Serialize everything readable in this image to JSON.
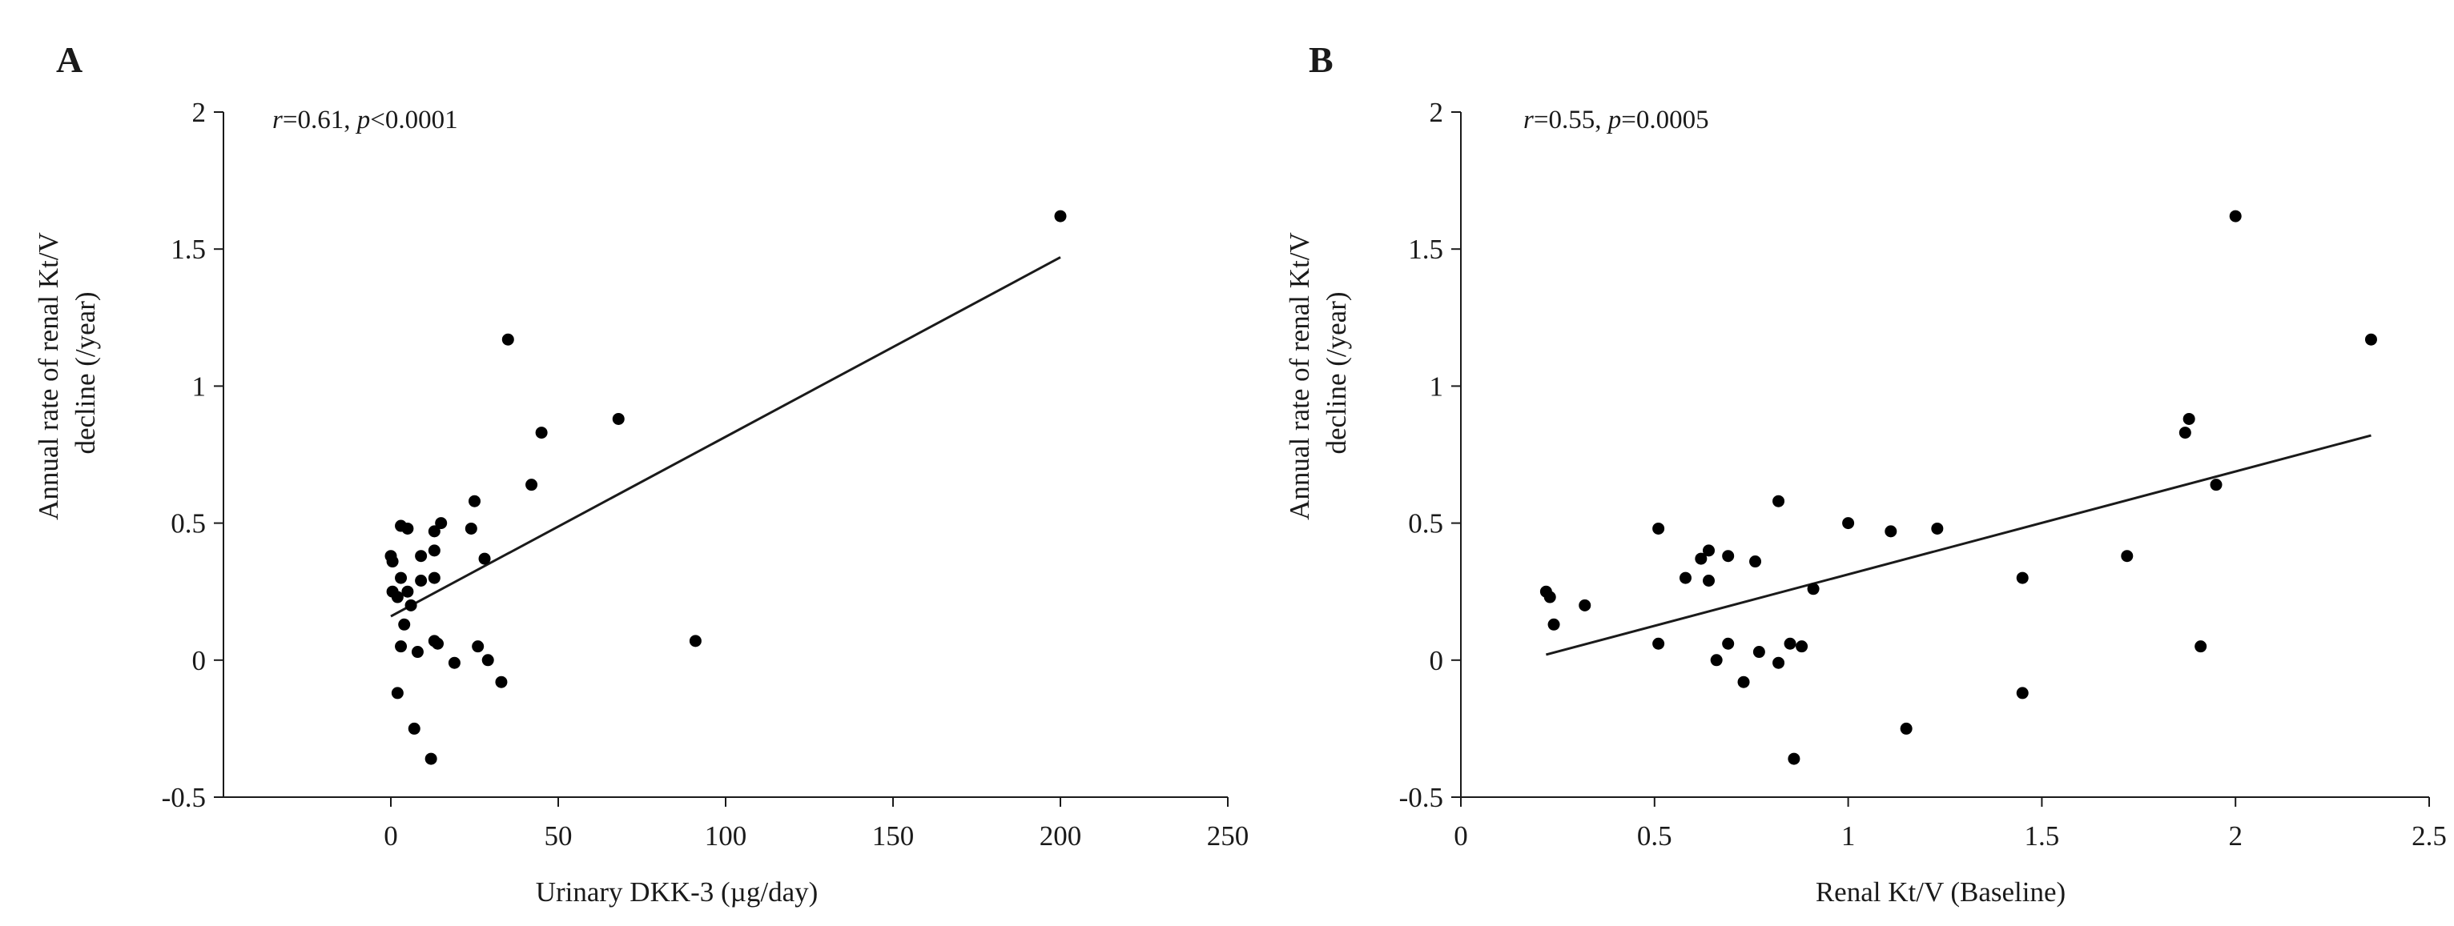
{
  "chart_data": [
    {
      "type": "scatter",
      "panel_label": "A",
      "stats": {
        "r_symbol": "r",
        "r_value": "=0.61, ",
        "p_symbol": "p",
        "p_value": "<0.0001"
      },
      "xlabel": "Urinary DKK-3 (µg/day)",
      "ylabel_lines": [
        "Annual rate of renal Kt/V",
        "decline (/year)"
      ],
      "xlim": [
        -50,
        250
      ],
      "ylim": [
        -0.5,
        2
      ],
      "xticks": [
        {
          "value": 0,
          "label": "0"
        },
        {
          "value": 50,
          "label": "50"
        },
        {
          "value": 100,
          "label": "100"
        },
        {
          "value": 150,
          "label": "150"
        },
        {
          "value": 200,
          "label": "200"
        },
        {
          "value": 250,
          "label": "250"
        }
      ],
      "yticks": [
        {
          "value": -0.5,
          "label": "-0.5"
        },
        {
          "value": 0,
          "label": "0"
        },
        {
          "value": 0.5,
          "label": "0.5"
        },
        {
          "value": 1,
          "label": "1"
        },
        {
          "value": 1.5,
          "label": "1.5"
        },
        {
          "value": 2,
          "label": "2"
        }
      ],
      "trend_line": {
        "x": [
          0,
          200
        ],
        "y": [
          0.16,
          1.47
        ]
      },
      "points": [
        {
          "x": 0,
          "y": 0.38
        },
        {
          "x": 0.5,
          "y": 0.36
        },
        {
          "x": 0.5,
          "y": 0.25
        },
        {
          "x": 2,
          "y": 0.23
        },
        {
          "x": 2,
          "y": -0.12
        },
        {
          "x": 3,
          "y": 0.49
        },
        {
          "x": 3,
          "y": 0.3
        },
        {
          "x": 3,
          "y": 0.05
        },
        {
          "x": 4,
          "y": 0.13
        },
        {
          "x": 5,
          "y": 0.48
        },
        {
          "x": 5,
          "y": 0.25
        },
        {
          "x": 6,
          "y": 0.2
        },
        {
          "x": 7,
          "y": -0.25
        },
        {
          "x": 8,
          "y": 0.03
        },
        {
          "x": 9,
          "y": 0.38
        },
        {
          "x": 9,
          "y": 0.29
        },
        {
          "x": 12,
          "y": -0.36
        },
        {
          "x": 13,
          "y": 0.47
        },
        {
          "x": 13,
          "y": 0.4
        },
        {
          "x": 13,
          "y": 0.3
        },
        {
          "x": 13,
          "y": 0.07
        },
        {
          "x": 14,
          "y": 0.06
        },
        {
          "x": 15,
          "y": 0.5
        },
        {
          "x": 19,
          "y": -0.01
        },
        {
          "x": 24,
          "y": 0.48
        },
        {
          "x": 25,
          "y": 0.58
        },
        {
          "x": 26,
          "y": 0.05
        },
        {
          "x": 28,
          "y": 0.37
        },
        {
          "x": 29,
          "y": 0
        },
        {
          "x": 33,
          "y": -0.08
        },
        {
          "x": 35,
          "y": 1.17
        },
        {
          "x": 42,
          "y": 0.64
        },
        {
          "x": 45,
          "y": 0.83
        },
        {
          "x": 68,
          "y": 0.88
        },
        {
          "x": 91,
          "y": 0.07
        },
        {
          "x": 200,
          "y": 1.62
        }
      ]
    },
    {
      "type": "scatter",
      "panel_label": "B",
      "stats": {
        "r_symbol": "r",
        "r_value": "=0.55, ",
        "p_symbol": "p",
        "p_value": "=0.0005"
      },
      "xlabel": "Renal Kt/V (Baseline)",
      "ylabel_lines": [
        "Annual rate of renal Kt/V",
        "decline (/year)"
      ],
      "xlim": [
        0,
        2.5
      ],
      "ylim": [
        -0.5,
        2
      ],
      "xticks": [
        {
          "value": 0,
          "label": "0"
        },
        {
          "value": 0.5,
          "label": "0.5"
        },
        {
          "value": 1,
          "label": "1"
        },
        {
          "value": 1.5,
          "label": "1.5"
        },
        {
          "value": 2,
          "label": "2"
        },
        {
          "value": 2.5,
          "label": "2.5"
        }
      ],
      "yticks": [
        {
          "value": -0.5,
          "label": "-0.5"
        },
        {
          "value": 0,
          "label": "0"
        },
        {
          "value": 0.5,
          "label": "0.5"
        },
        {
          "value": 1,
          "label": "1"
        },
        {
          "value": 1.5,
          "label": "1.5"
        },
        {
          "value": 2,
          "label": "2"
        }
      ],
      "trend_line": {
        "x": [
          0.22,
          2.35
        ],
        "y": [
          0.02,
          0.82
        ]
      },
      "points": [
        {
          "x": 0.22,
          "y": 0.25
        },
        {
          "x": 0.23,
          "y": 0.23
        },
        {
          "x": 0.24,
          "y": 0.13
        },
        {
          "x": 0.32,
          "y": 0.2
        },
        {
          "x": 0.51,
          "y": 0.48
        },
        {
          "x": 0.51,
          "y": 0.06
        },
        {
          "x": 0.58,
          "y": 0.3
        },
        {
          "x": 0.62,
          "y": 0.37
        },
        {
          "x": 0.64,
          "y": 0.4
        },
        {
          "x": 0.64,
          "y": 0.29
        },
        {
          "x": 0.66,
          "y": 0
        },
        {
          "x": 0.69,
          "y": 0.38
        },
        {
          "x": 0.69,
          "y": 0.06
        },
        {
          "x": 0.73,
          "y": -0.08
        },
        {
          "x": 0.76,
          "y": 0.36
        },
        {
          "x": 0.77,
          "y": 0.03
        },
        {
          "x": 0.82,
          "y": 0.58
        },
        {
          "x": 0.82,
          "y": -0.01
        },
        {
          "x": 0.85,
          "y": 0.06
        },
        {
          "x": 0.86,
          "y": -0.36
        },
        {
          "x": 0.88,
          "y": 0.05
        },
        {
          "x": 0.91,
          "y": 0.26
        },
        {
          "x": 1,
          "y": 0.5
        },
        {
          "x": 1.11,
          "y": 0.47
        },
        {
          "x": 1.15,
          "y": -0.25
        },
        {
          "x": 1.23,
          "y": 0.48
        },
        {
          "x": 1.45,
          "y": 0.3
        },
        {
          "x": 1.45,
          "y": -0.12
        },
        {
          "x": 1.72,
          "y": 0.38
        },
        {
          "x": 1.87,
          "y": 0.83
        },
        {
          "x": 1.88,
          "y": 0.88
        },
        {
          "x": 1.91,
          "y": 0.05
        },
        {
          "x": 1.95,
          "y": 0.64
        },
        {
          "x": 2,
          "y": 1.62
        },
        {
          "x": 2.35,
          "y": 1.17
        }
      ]
    }
  ]
}
